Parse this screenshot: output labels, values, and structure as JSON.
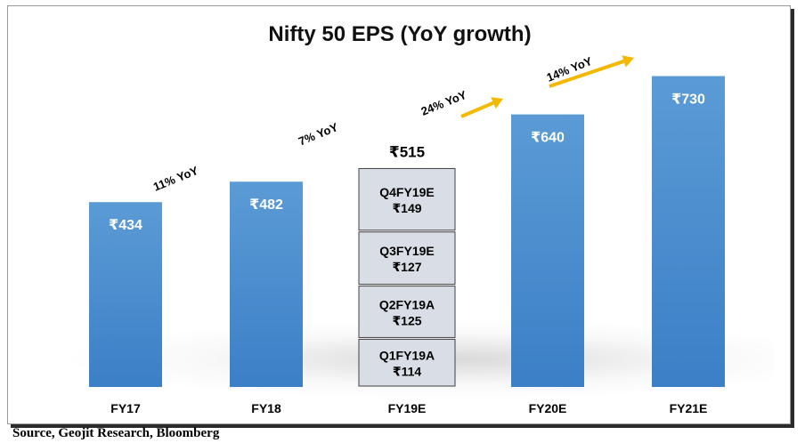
{
  "chart_data": {
    "type": "bar",
    "title": "Nifty 50 EPS (YoY growth)",
    "categories": [
      "FY17",
      "FY18",
      "FY19E",
      "FY20E",
      "FY21E"
    ],
    "values": [
      434,
      482,
      515,
      640,
      730
    ],
    "value_labels": [
      "₹434",
      "₹482",
      "₹515",
      "₹640",
      "₹730"
    ],
    "stacked_breakdown": {
      "category": "FY19E",
      "segments": [
        {
          "name": "Q1FY19A",
          "value": 114,
          "label": "₹114"
        },
        {
          "name": "Q2FY19A",
          "value": 125,
          "label": "₹125"
        },
        {
          "name": "Q3FY19E",
          "value": 127,
          "label": "₹127"
        },
        {
          "name": "Q4FY19E",
          "value": 149,
          "label": "₹149"
        }
      ]
    },
    "growth_annotations": [
      "11% YoY",
      "7% YoY",
      "24% YoY",
      "14% YoY"
    ],
    "ylim": [
      0,
      800
    ],
    "grid": false,
    "legend": "none",
    "colors": {
      "bar_top": "#5b9bd5",
      "bar_bottom": "#3b7fc7",
      "segment_fill": "#d9dee6",
      "segment_border": "#404040",
      "arrow": "#f5b800"
    }
  },
  "source_note": "Source, Geojit Research, Bloomberg"
}
